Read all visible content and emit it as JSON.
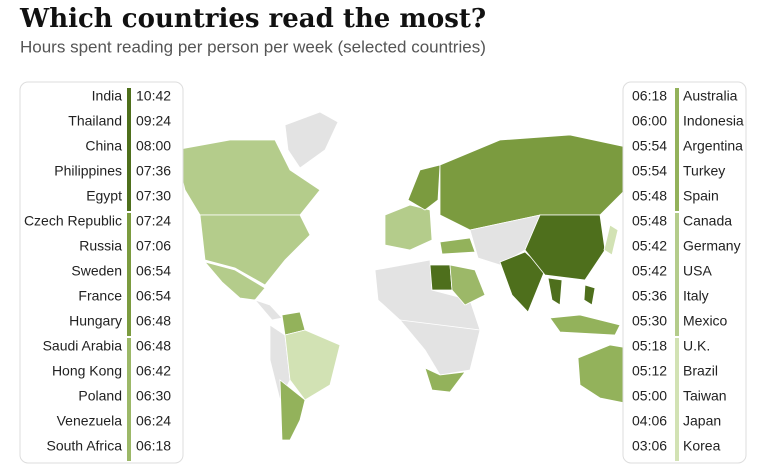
{
  "header": {
    "title": "Which countries read the most?",
    "subtitle": "Hours spent reading per person per week (selected countries)"
  },
  "left_panel": {
    "groups": [
      {
        "color": "#4e6f1c",
        "rows": [
          [
            "India",
            "10:42"
          ],
          [
            "Thailand",
            "09:24"
          ],
          [
            "China",
            "08:00"
          ],
          [
            "Philippines",
            "07:36"
          ],
          [
            "Egypt",
            "07:30"
          ]
        ]
      },
      {
        "color": "#7b9b3f",
        "rows": [
          [
            "Czech Republic",
            "07:24"
          ],
          [
            "Russia",
            "07:06"
          ],
          [
            "Sweden",
            "06:54"
          ],
          [
            "France",
            "06:54"
          ],
          [
            "Hungary",
            "06:48"
          ]
        ]
      },
      {
        "color": "#9cb868",
        "rows": [
          [
            "Saudi Arabia",
            "06:48"
          ],
          [
            "Hong Kong",
            "06:42"
          ],
          [
            "Poland",
            "06:30"
          ],
          [
            "Venezuela",
            "06:24"
          ],
          [
            "South Africa",
            "06:18"
          ]
        ]
      }
    ]
  },
  "right_panel": {
    "groups": [
      {
        "color": "#93b25b",
        "rows": [
          [
            "06:18",
            "Australia"
          ],
          [
            "06:00",
            "Indonesia"
          ],
          [
            "05:54",
            "Argentina"
          ],
          [
            "05:54",
            "Turkey"
          ],
          [
            "05:48",
            "Spain"
          ]
        ]
      },
      {
        "color": "#b4cc8b",
        "rows": [
          [
            "05:48",
            "Canada"
          ],
          [
            "05:42",
            "Germany"
          ],
          [
            "05:42",
            "USA"
          ],
          [
            "05:36",
            "Italy"
          ],
          [
            "05:30",
            "Mexico"
          ]
        ]
      },
      {
        "color": "#d2e2b4",
        "rows": [
          [
            "05:18",
            "U.K."
          ],
          [
            "05:12",
            "Brazil"
          ],
          [
            "05:00",
            "Taiwan"
          ],
          [
            "04:06",
            "Japan"
          ],
          [
            "03:06",
            "Korea"
          ]
        ]
      }
    ]
  }
}
